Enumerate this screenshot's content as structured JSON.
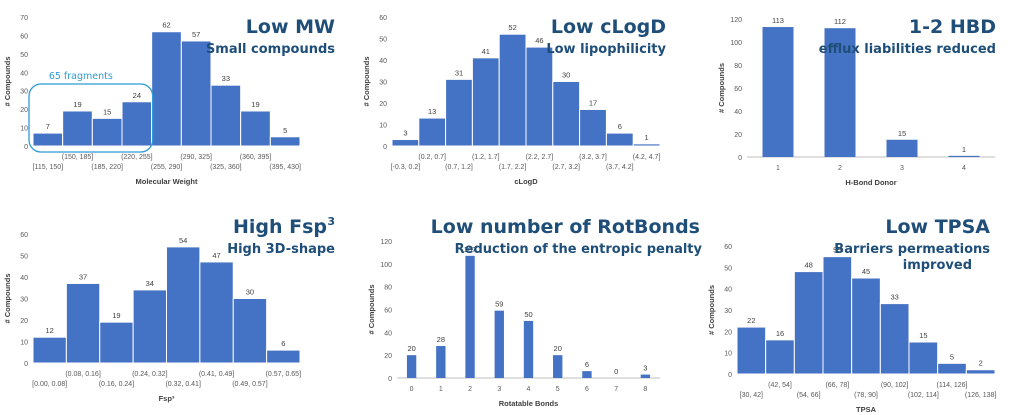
{
  "chart_data": [
    {
      "type": "bar",
      "title": "Low MW",
      "subtitle": "Small compounds",
      "xlabel": "Molecular Weight",
      "ylabel": "# Compounds",
      "ylim": [
        0,
        70
      ],
      "yticks": [
        0,
        10,
        20,
        30,
        40,
        50,
        60,
        70
      ],
      "categories": [
        "[115, 150]",
        "(150, 185]",
        "(185, 220]",
        "(220, 255]",
        "(255, 290]",
        "(290, 325]",
        "(325, 360]",
        "(360, 395]",
        "(395, 430]"
      ],
      "values": [
        7,
        19,
        15,
        24,
        62,
        57,
        33,
        19,
        5
      ],
      "highlight": {
        "label": "65 fragments",
        "first": 0,
        "last": 3
      },
      "color": "#4472c4"
    },
    {
      "type": "bar",
      "title": "Low cLogD",
      "subtitle": "Low lipophilicity",
      "xlabel": "cLogD",
      "ylabel": "# Compounds",
      "ylim": [
        0,
        60
      ],
      "yticks": [
        0,
        10,
        20,
        30,
        40,
        50,
        60
      ],
      "categories": [
        "[-0.3, 0.2]",
        "(0.2, 0.7]",
        "(0.7, 1.2]",
        "(1.2, 1.7]",
        "(1.7, 2.2]",
        "(2.2, 2.7]",
        "(2.7, 3.2]",
        "(3.2, 3.7]",
        "(3.7, 4.2]",
        "(4.2, 4.7]"
      ],
      "values": [
        3,
        13,
        31,
        41,
        52,
        46,
        30,
        17,
        6,
        1
      ],
      "color": "#4472c4"
    },
    {
      "type": "bar",
      "title": "1-2 HBD",
      "subtitle": "efflux liabilities reduced",
      "xlabel": "H-Bond Donor",
      "ylabel": "# Compounds",
      "ylim": [
        0,
        120
      ],
      "yticks": [
        0,
        20,
        40,
        60,
        80,
        100,
        120
      ],
      "categories": [
        "1",
        "2",
        "3",
        "4"
      ],
      "values": [
        113,
        112,
        15,
        1
      ],
      "color": "#4472c4"
    },
    {
      "type": "bar",
      "title": "High Fsp",
      "title_sup": "3",
      "subtitle": "High 3D-shape",
      "xlabel": "Fsp³",
      "ylabel": "# Compounds",
      "ylim": [
        0,
        60
      ],
      "yticks": [
        0,
        10,
        20,
        30,
        40,
        50,
        60
      ],
      "categories": [
        "[0.00, 0.08]",
        "(0.08, 0.16]",
        "(0.16, 0.24]",
        "(0.24, 0.32]",
        "(0.32, 0.41]",
        "(0.41, 0.49]",
        "(0.49, 0.57]",
        "(0.57, 0.65]"
      ],
      "values": [
        12,
        37,
        19,
        34,
        54,
        47,
        30,
        6
      ],
      "color": "#4472c4"
    },
    {
      "type": "bar",
      "title": "Low number of RotBonds",
      "subtitle": "Reduction of the entropic penalty",
      "xlabel": "Rotatable Bonds",
      "ylabel": "# Compounds",
      "ylim": [
        0,
        120
      ],
      "yticks": [
        0,
        20,
        40,
        60,
        80,
        100,
        120
      ],
      "categories": [
        "0",
        "1",
        "2",
        "3",
        "4",
        "5",
        "6",
        "7",
        "8"
      ],
      "values": [
        20,
        28,
        107,
        59,
        50,
        20,
        6,
        0,
        3
      ],
      "color": "#4472c4"
    },
    {
      "type": "bar",
      "title": "Low TPSA",
      "subtitle": "Barriers permeations improved",
      "xlabel": "TPSA",
      "ylabel": "# Compounds",
      "ylim": [
        0,
        60
      ],
      "yticks": [
        0,
        10,
        20,
        30,
        40,
        50,
        60
      ],
      "categories": [
        "[30, 42]",
        "(42, 54]",
        "(54, 66]",
        "(66, 78]",
        "(78, 90]",
        "(90, 102]",
        "(102, 114]",
        "(114, 126]",
        "(126, 138]"
      ],
      "values": [
        22,
        16,
        48,
        55,
        45,
        33,
        15,
        5,
        2
      ],
      "color": "#4472c4"
    }
  ]
}
